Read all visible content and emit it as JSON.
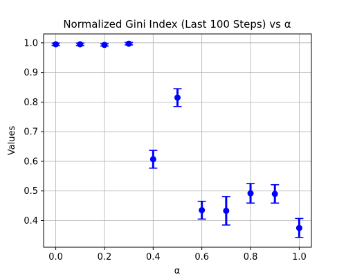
{
  "chart_data": {
    "type": "scatter",
    "title": "Normalized Gini Index (Last 100 Steps) vs α",
    "xlabel": "α",
    "ylabel": "Values",
    "xlim": [
      -0.05,
      1.05
    ],
    "ylim": [
      0.31,
      1.03
    ],
    "xticks": [
      0.0,
      0.2,
      0.4,
      0.6,
      0.8,
      1.0
    ],
    "xtick_labels": [
      "0.0",
      "0.2",
      "0.4",
      "0.6",
      "0.8",
      "1.0"
    ],
    "yticks": [
      0.4,
      0.5,
      0.6,
      0.7,
      0.8,
      0.9,
      1.0
    ],
    "ytick_labels": [
      "0.4",
      "0.5",
      "0.6",
      "0.7",
      "0.8",
      "0.9",
      "1.0"
    ],
    "grid": true,
    "marker_color": "#0000ff",
    "series": [
      {
        "x": [
          0.0,
          0.1,
          0.2,
          0.3,
          0.4,
          0.5,
          0.6,
          0.7,
          0.8,
          0.9,
          1.0
        ],
        "y": [
          0.995,
          0.995,
          0.993,
          0.997,
          0.607,
          0.815,
          0.435,
          0.433,
          0.492,
          0.49,
          0.375
        ],
        "yerr": [
          0.004,
          0.004,
          0.004,
          0.004,
          0.03,
          0.03,
          0.03,
          0.048,
          0.033,
          0.031,
          0.032
        ]
      }
    ]
  }
}
